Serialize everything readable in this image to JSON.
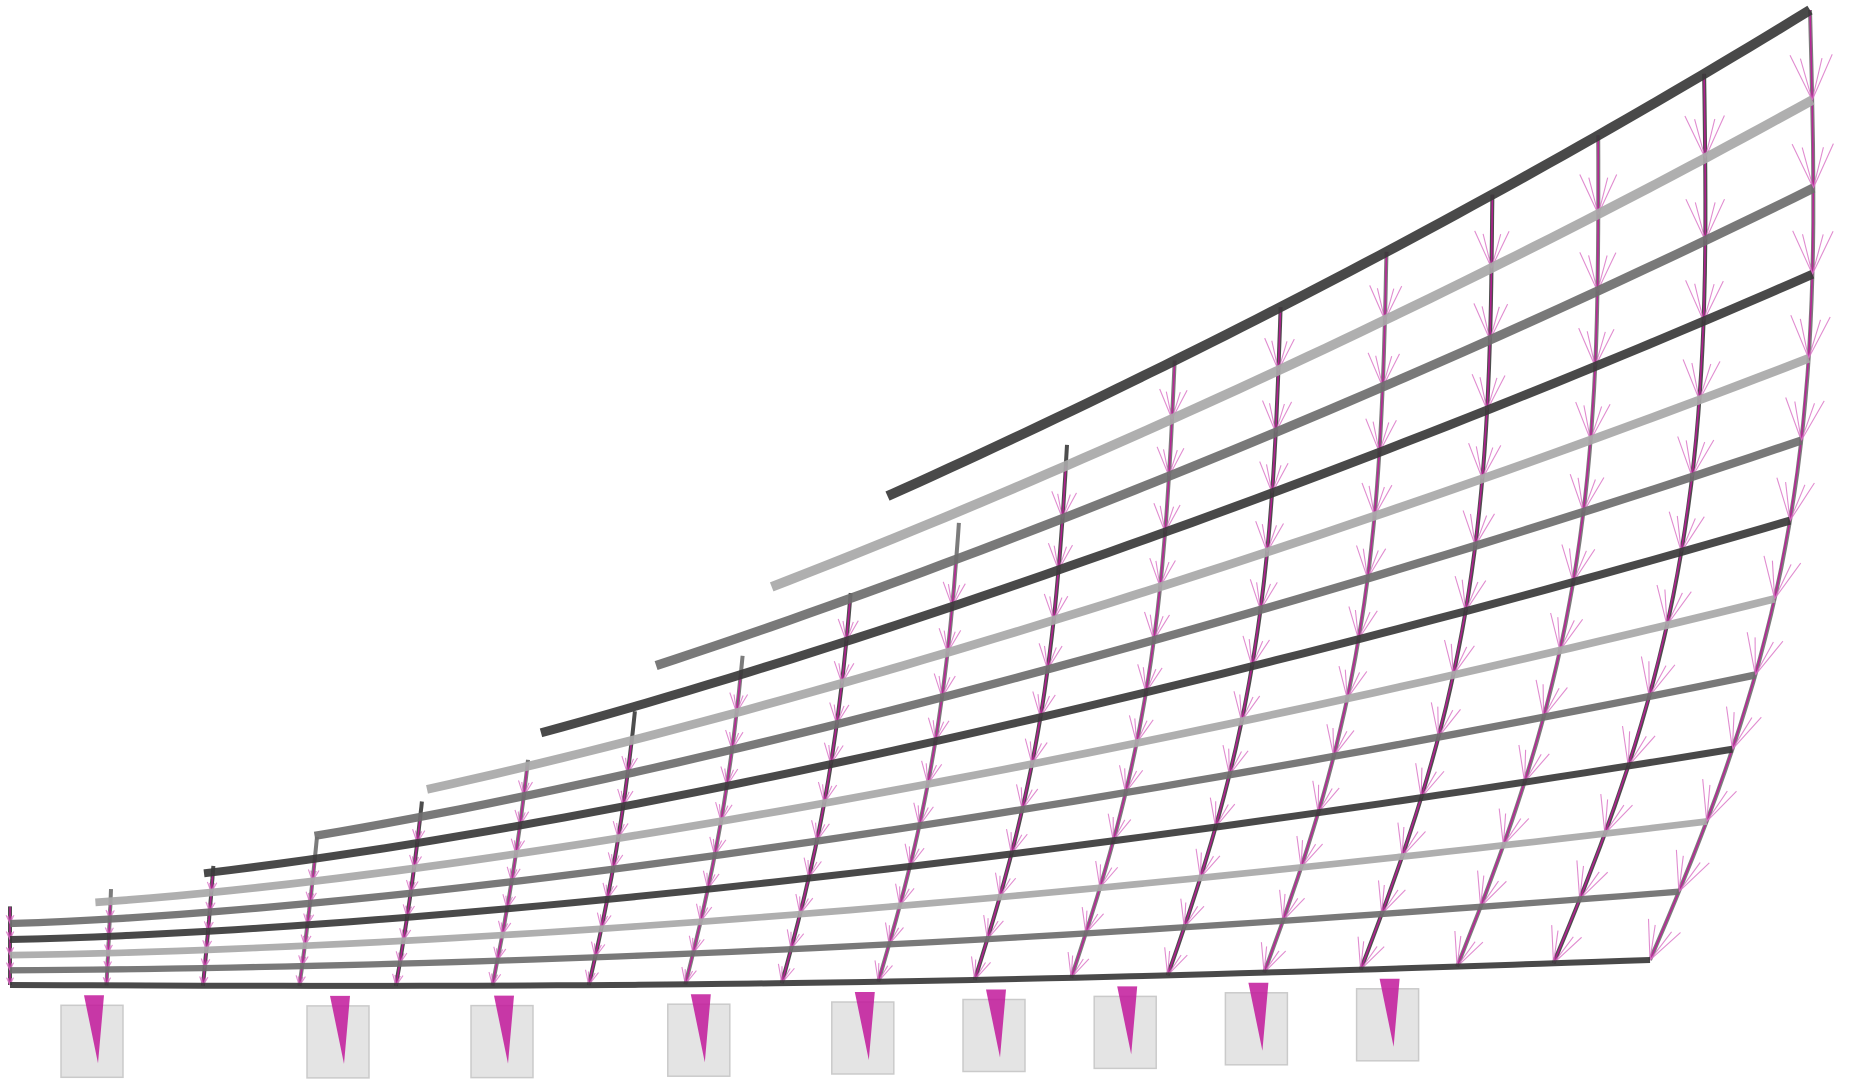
{
  "diagram": {
    "kind": "structural-wireframe",
    "description_visible_text": "",
    "grid": {
      "long_members": 13,
      "cross_members": 18
    },
    "colors": {
      "background": "#ffffff",
      "beam_dark": "#3a3a3a",
      "beam_mid": "#6e6e6e",
      "beam_light": "#a8a8a8",
      "force_vectors": "#c2199b",
      "force_vectors_light": "#d96fc4",
      "footing_fill": "#d9d9d9",
      "footing_stroke": "#b5b5b5"
    },
    "icons": {
      "members": "steel-beam-icon",
      "vectors": "load-path-arrow-icon",
      "supports": "footing-block-icon"
    }
  }
}
